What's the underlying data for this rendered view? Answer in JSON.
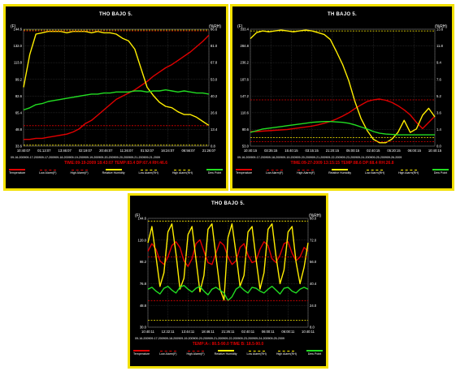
{
  "colors": {
    "temperature": "#e00000",
    "low_alarm_f": "#e00000",
    "high_alarm_f": "#e00000",
    "relative_humidity": "#ffee00",
    "low_alarm_rh": "#ffee00",
    "high_alarm_rh": "#ffee00",
    "dew_point": "#22dd22",
    "frame": "#f2e000",
    "background": "#000000"
  },
  "legend_labels": [
    "Temperature",
    "Low Alarm(F)",
    "High Alarm(F)",
    "Relative Humidity",
    "Low Alarm(RH)",
    "High Alarm(RH)",
    "Dew Point"
  ],
  "chart_data": [
    {
      "type": "line",
      "title": "THO BAJO 5.",
      "y_left_label": "(F)",
      "y_right_label": "(%RH)",
      "y_left_ticks": [
        "144.6",
        "132.0",
        "113.8",
        "99.2",
        "82.6",
        "65.4",
        "48.8",
        "33.6"
      ],
      "y_right_ticks": [
        "86.6",
        "81.0",
        "67.8",
        "53.0",
        "40.2",
        "26.6",
        "13.4",
        "0.8"
      ],
      "ylim_left": [
        33.6,
        144.6
      ],
      "ylim_right": [
        0.8,
        86.6
      ],
      "x_ticks": [
        "10:40:07",
        "01:13:07",
        "13:46:07",
        "02:19:07",
        "20:46:07",
        "11:26:07",
        "01:52:07",
        "16:24:07",
        "06:56:07",
        "21:26:07"
      ],
      "x_dates": "09-16-200909-17-200909-17-200909-18-200909-19-200909-19-200909-20-200909-20-200909-21-200909-21-2009",
      "status_line": "TIME:09-19-2009 18:43:07   TEMP:83.4   DP:67.4   RH:46.6",
      "x": [
        0,
        1,
        2,
        3,
        4,
        5,
        6,
        7,
        8,
        9,
        10,
        11,
        12,
        13,
        14,
        15,
        16,
        17,
        18,
        19,
        20,
        21,
        22,
        23,
        24,
        25,
        26,
        27,
        28,
        29,
        30
      ],
      "series": [
        {
          "name": "Temperature",
          "axis": "left",
          "values": [
            40,
            40,
            41,
            41,
            42,
            43,
            44,
            45,
            47,
            50,
            55,
            58,
            63,
            68,
            73,
            78,
            81,
            84,
            87,
            91,
            95,
            100,
            104,
            108,
            111,
            115,
            119,
            123,
            128,
            133,
            139
          ]
        },
        {
          "name": "Relative Humidity",
          "axis": "right",
          "values": [
            44,
            68,
            83,
            84,
            85,
            85,
            85,
            84,
            85,
            85,
            85,
            84,
            85,
            84,
            84,
            83,
            80,
            78,
            72,
            58,
            44,
            38,
            33,
            30,
            29,
            26,
            24,
            24,
            22,
            19,
            16
          ]
        },
        {
          "name": "Dew Point",
          "axis": "left",
          "values": [
            68,
            70,
            73,
            74,
            76,
            77,
            78,
            79,
            80,
            81,
            82,
            83,
            83,
            84,
            84,
            85,
            85,
            85,
            86,
            86,
            85,
            86,
            86,
            87,
            86,
            85,
            86,
            85,
            84,
            84,
            83
          ]
        },
        {
          "name": "Low Alarm(F)",
          "axis": "left",
          "values": [
            53,
            53,
            53,
            53,
            53,
            53,
            53,
            53,
            53,
            53,
            53,
            53,
            53,
            53,
            53,
            53,
            53,
            53,
            53,
            53,
            53,
            53,
            53,
            53,
            53,
            53,
            53,
            53,
            53,
            53,
            53
          ]
        },
        {
          "name": "High Alarm(F)",
          "axis": "left",
          "values": [
            143,
            143,
            143,
            143,
            143,
            143,
            143,
            143,
            143,
            143,
            143,
            143,
            143,
            143,
            143,
            143,
            143,
            143,
            143,
            143,
            143,
            143,
            143,
            143,
            143,
            143,
            143,
            143,
            143,
            143,
            143
          ]
        },
        {
          "name": "Low Alarm(RH)",
          "axis": "right",
          "values": [
            1.5,
            1.5,
            1.5,
            1.5,
            1.5,
            1.5,
            1.5,
            1.5,
            1.5,
            1.5,
            1.5,
            1.5,
            1.5,
            1.5,
            1.5,
            1.5,
            1.5,
            1.5,
            1.5,
            1.5,
            1.5,
            1.5,
            1.5,
            1.5,
            1.5,
            1.5,
            1.5,
            1.5,
            1.5,
            1.5,
            1.5
          ]
        },
        {
          "name": "High Alarm(RH)",
          "axis": "right",
          "values": [
            86,
            86,
            86,
            86,
            86,
            86,
            86,
            86,
            86,
            86,
            86,
            86,
            86,
            86,
            86,
            86,
            86,
            86,
            86,
            86,
            86,
            86,
            86,
            86,
            86,
            86,
            86,
            86,
            86,
            86,
            86
          ]
        }
      ]
    },
    {
      "type": "line",
      "title": "TH BAJO 5.",
      "y_left_label": "(F)",
      "y_right_label": "(%RH)",
      "y_left_ticks": [
        "333.4",
        "284.8",
        "236.2",
        "187.6",
        "147.2",
        "110.6",
        "80.6",
        "53.0"
      ],
      "y_right_ticks": [
        "13.6",
        "11.8",
        "9.4",
        "7.6",
        "5.2",
        "3.6",
        "1.4",
        "0.0"
      ],
      "ylim_left": [
        53.0,
        333.4
      ],
      "ylim_right": [
        0.0,
        13.6
      ],
      "x_ticks": [
        "10:40:15",
        "03:35:15",
        "15:40:15",
        "03:15:15",
        "21:20:15",
        "05:00:15",
        "02:40:15",
        "05:20:15",
        "06:00:15",
        "10:40:15"
      ],
      "x_dates": "09-16-200909-17-200909-18-200909-19-200909-20-200909-21-200909-22-200909-23-200909-24-200909-25-200909-26-2009",
      "status_line": "TIME:09-27-2009 13:15:15   TEMP:88.6   DP:68.4   RH:26.8",
      "x": [
        0,
        1,
        2,
        3,
        4,
        5,
        6,
        7,
        8,
        9,
        10,
        11,
        12,
        13,
        14,
        15,
        16,
        17,
        18,
        19,
        20,
        21,
        22,
        23,
        24,
        25,
        26,
        27,
        28,
        29,
        30
      ],
      "series": [
        {
          "name": "Temperature",
          "axis": "left",
          "values": [
            88,
            88,
            89,
            90,
            91,
            92,
            93,
            95,
            97,
            99,
            101,
            104,
            108,
            112,
            118,
            125,
            133,
            143,
            152,
            160,
            164,
            166,
            163,
            158,
            150,
            140,
            128,
            110,
            95,
            110,
            125
          ]
        },
        {
          "name": "Relative Humidity",
          "axis": "right",
          "values": [
            12.5,
            13.2,
            13.4,
            13.3,
            13.4,
            13.5,
            13.4,
            13.3,
            13.4,
            13.5,
            13.4,
            13.2,
            13.0,
            12.4,
            11.0,
            9.5,
            7.6,
            5.2,
            3.2,
            1.8,
            0.8,
            0.4,
            0.4,
            0.8,
            1.6,
            3.0,
            1.6,
            2.0,
            3.6,
            4.4,
            3.4
          ]
        },
        {
          "name": "Dew Point",
          "axis": "left",
          "values": [
            86,
            90,
            94,
            96,
            98,
            100,
            102,
            104,
            106,
            108,
            110,
            111,
            112,
            112,
            111,
            110,
            108,
            104,
            99,
            94,
            88,
            84,
            82,
            81,
            80,
            80,
            80,
            80,
            80,
            80,
            80
          ]
        },
        {
          "name": "Low Alarm(F)",
          "axis": "left",
          "values": [
            64,
            64,
            64,
            64,
            64,
            64,
            64,
            64,
            64,
            64,
            64,
            64,
            64,
            64,
            64,
            64,
            64,
            64,
            64,
            64,
            64,
            64,
            64,
            64,
            64,
            64,
            64,
            64,
            64,
            64,
            64
          ]
        },
        {
          "name": "High Alarm(F)",
          "axis": "left",
          "values": [
            164,
            164,
            164,
            164,
            164,
            164,
            164,
            164,
            164,
            164,
            164,
            164,
            164,
            164,
            164,
            164,
            164,
            164,
            164,
            164,
            164,
            164,
            164,
            164,
            164,
            164,
            164,
            164,
            164,
            164,
            164
          ]
        },
        {
          "name": "Low Alarm(RH)",
          "axis": "right",
          "values": [
            1.0,
            1.0,
            1.0,
            1.0,
            1.0,
            1.0,
            1.0,
            1.0,
            1.0,
            1.0,
            1.0,
            1.0,
            1.0,
            1.0,
            1.0,
            1.0,
            1.0,
            1.0,
            1.0,
            1.0,
            1.0,
            1.0,
            1.0,
            1.0,
            1.0,
            1.0,
            1.0,
            1.0,
            1.0,
            1.0,
            1.0
          ]
        },
        {
          "name": "High Alarm(RH)",
          "axis": "right",
          "values": [
            13.4,
            13.4,
            13.4,
            13.4,
            13.4,
            13.4,
            13.4,
            13.4,
            13.4,
            13.4,
            13.4,
            13.4,
            13.4,
            13.4,
            13.4,
            13.4,
            13.4,
            13.4,
            13.4,
            13.4,
            13.4,
            13.4,
            13.4,
            13.4,
            13.4,
            13.4,
            13.4,
            13.4,
            13.4,
            13.4,
            13.4
          ]
        }
      ]
    },
    {
      "type": "line",
      "title": "THO BAJO 5.",
      "y_left_label": "(F)",
      "y_right_label": "(%RH)",
      "y_left_ticks": [
        "144.6",
        "120.0",
        "98.2",
        "76.8",
        "48.8",
        "30.0"
      ],
      "y_right_ticks": [
        "88.0",
        "72.0",
        "56.0",
        "40.4",
        "24.0",
        "8.0"
      ],
      "ylim_left": [
        30.0,
        144.6
      ],
      "ylim_right": [
        8.0,
        88.0
      ],
      "x_ticks": [
        "10:40:11",
        "12:22:11",
        "13:44:11",
        "18:46:11",
        "21:26:11",
        "02:40:11",
        "06:00:11",
        "06:00:11",
        "10:40:11"
      ],
      "x_dates": "09-16-200909-17-200909-18-200909-19-200909-20-200909-21-200909-22-200909-23-200909-24-200909-25-2009",
      "status_line": "TEMP:A-: 80.5-90.0 TIME B: 18.5-90.0",
      "x": [
        0,
        1,
        2,
        3,
        4,
        5,
        6,
        7,
        8,
        9,
        10,
        11,
        12,
        13,
        14,
        15,
        16,
        17,
        18,
        19,
        20,
        21,
        22,
        23,
        24,
        25,
        26,
        27,
        28,
        29,
        30,
        31,
        32,
        33,
        34,
        35,
        36,
        37,
        38,
        39,
        40
      ],
      "series": [
        {
          "name": "Temperature",
          "axis": "left",
          "values": [
            110,
            118,
            112,
            100,
            96,
            104,
            116,
            120,
            114,
            100,
            94,
            102,
            118,
            122,
            110,
            98,
            96,
            108,
            120,
            116,
            104,
            96,
            100,
            114,
            118,
            106,
            98,
            100,
            112,
            120,
            116,
            102,
            98,
            106,
            118,
            120,
            108,
            100,
            104,
            114,
            110
          ]
        },
        {
          "name": "Relative Humidity",
          "axis": "right",
          "values": [
            70,
            82,
            60,
            38,
            48,
            78,
            84,
            62,
            36,
            44,
            76,
            82,
            58,
            34,
            46,
            80,
            84,
            60,
            36,
            28,
            74,
            84,
            62,
            38,
            46,
            78,
            82,
            58,
            36,
            48,
            80,
            84,
            60,
            40,
            50,
            78,
            82,
            56,
            40,
            52,
            70
          ]
        },
        {
          "name": "Dew Point",
          "axis": "left",
          "values": [
            70,
            72,
            68,
            65,
            71,
            73,
            69,
            66,
            72,
            74,
            70,
            67,
            71,
            73,
            68,
            64,
            70,
            72,
            69,
            66,
            58,
            62,
            70,
            73,
            69,
            66,
            72,
            71,
            68,
            66,
            70,
            73,
            69,
            65,
            71,
            72,
            68,
            66,
            70,
            72,
            70
          ]
        },
        {
          "name": "Low Alarm(F)",
          "axis": "left",
          "values": [
            58,
            58,
            58,
            58,
            58,
            58,
            58,
            58,
            58,
            58,
            58,
            58,
            58,
            58,
            58,
            58,
            58,
            58,
            58,
            58,
            58,
            58,
            58,
            58,
            58,
            58,
            58,
            58,
            58,
            58,
            58,
            58,
            58,
            58,
            58,
            58,
            58,
            58,
            58,
            58,
            58
          ]
        },
        {
          "name": "High Alarm(F)",
          "axis": "left",
          "values": [
            104,
            104,
            104,
            104,
            104,
            104,
            104,
            104,
            104,
            104,
            104,
            104,
            104,
            104,
            104,
            104,
            104,
            104,
            104,
            104,
            104,
            104,
            104,
            104,
            104,
            104,
            104,
            104,
            104,
            104,
            104,
            104,
            104,
            104,
            104,
            104,
            104,
            104,
            104,
            104,
            104
          ]
        },
        {
          "name": "Low Alarm(RH)",
          "axis": "right",
          "values": [
            13,
            13,
            13,
            13,
            13,
            13,
            13,
            13,
            13,
            13,
            13,
            13,
            13,
            13,
            13,
            13,
            13,
            13,
            13,
            13,
            13,
            13,
            13,
            13,
            13,
            13,
            13,
            13,
            13,
            13,
            13,
            13,
            13,
            13,
            13,
            13,
            13,
            13,
            13,
            13,
            13
          ]
        },
        {
          "name": "High Alarm(RH)",
          "axis": "right",
          "values": [
            86,
            86,
            86,
            86,
            86,
            86,
            86,
            86,
            86,
            86,
            86,
            86,
            86,
            86,
            86,
            86,
            86,
            86,
            86,
            86,
            86,
            86,
            86,
            86,
            86,
            86,
            86,
            86,
            86,
            86,
            86,
            86,
            86,
            86,
            86,
            86,
            86,
            86,
            86,
            86,
            86
          ]
        }
      ]
    }
  ]
}
